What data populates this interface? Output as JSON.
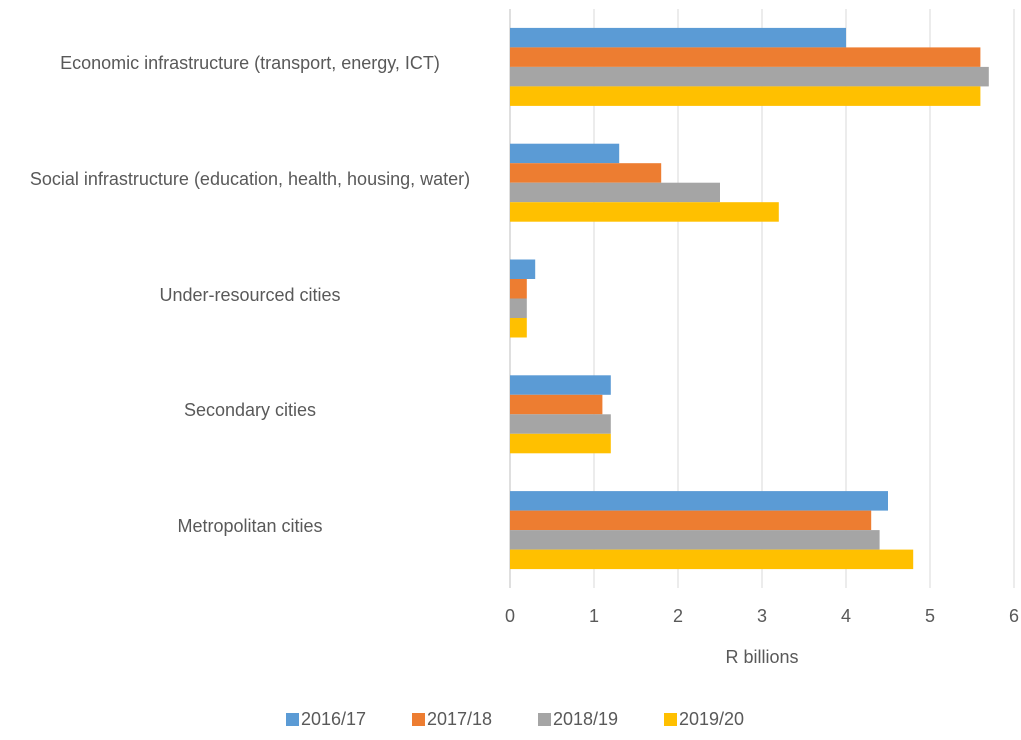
{
  "chart_data": {
    "type": "hbar",
    "categories": [
      "Economic infrastructure (transport, energy, ICT)",
      "Social infrastructure (education, health, housing, water)",
      "Under-resourced cities",
      "Secondary cities",
      "Metropolitan cities"
    ],
    "series": [
      {
        "name": "2016/17",
        "color": "#5b9bd5",
        "values": [
          4.0,
          1.3,
          0.3,
          1.2,
          4.5
        ]
      },
      {
        "name": "2017/18",
        "color": "#ed7d31",
        "values": [
          5.6,
          1.8,
          0.2,
          1.1,
          4.3
        ]
      },
      {
        "name": "2018/19",
        "color": "#a5a5a5",
        "values": [
          5.7,
          2.5,
          0.2,
          1.2,
          4.4
        ]
      },
      {
        "name": "2019/20",
        "color": "#ffc000",
        "values": [
          5.6,
          3.2,
          0.2,
          1.2,
          4.8
        ]
      }
    ],
    "xlabel": "R billions",
    "xlim": [
      0,
      6
    ],
    "xticks": [
      0,
      1,
      2,
      3,
      4,
      5,
      6
    ],
    "grid": true,
    "legend": "bottom"
  }
}
